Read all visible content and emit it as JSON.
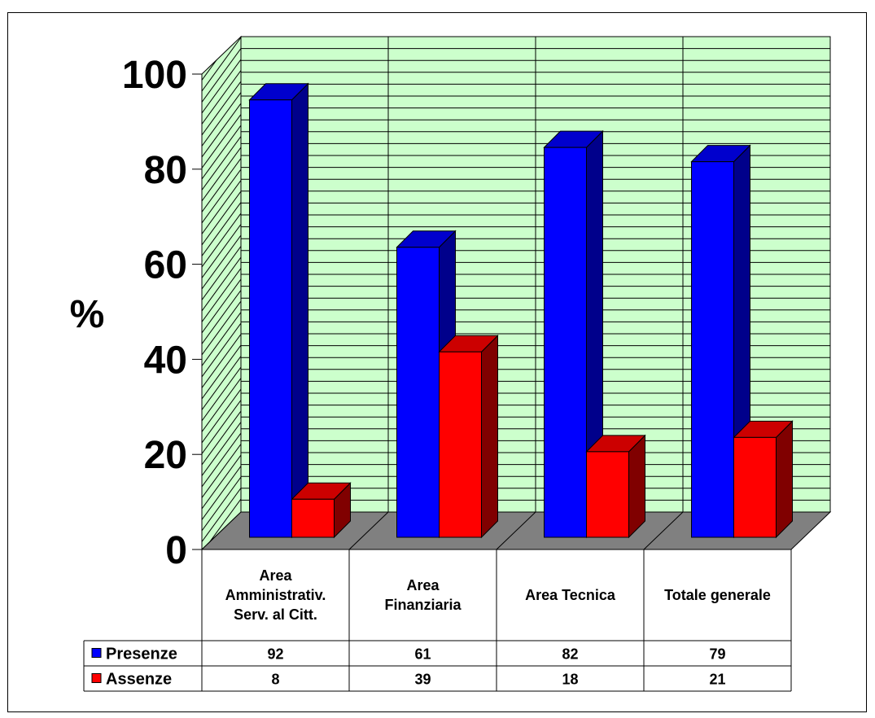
{
  "chart_data": {
    "type": "bar",
    "ylabel": "%",
    "ylim": [
      0,
      100
    ],
    "yticks": [
      "0",
      "20",
      "40",
      "60",
      "80",
      "100"
    ],
    "categories": [
      [
        "Area",
        "Amministrativ.",
        "Serv. al Citt."
      ],
      [
        "Area",
        "Finanziaria"
      ],
      [
        "Area Tecnica"
      ],
      [
        "Totale generale"
      ]
    ],
    "series": [
      {
        "name": "Presenze",
        "values": [
          92,
          61,
          82,
          79
        ],
        "color": "#0000ff",
        "side_color": "#00008b",
        "top_color": "#0000cd"
      },
      {
        "name": "Assenze",
        "values": [
          8,
          39,
          18,
          21
        ],
        "color": "#ff0000",
        "side_color": "#800000",
        "top_color": "#cc0000"
      }
    ],
    "wall_color": "#ccffcc",
    "floor_color": "#808080",
    "grid": true,
    "data_table": true
  }
}
